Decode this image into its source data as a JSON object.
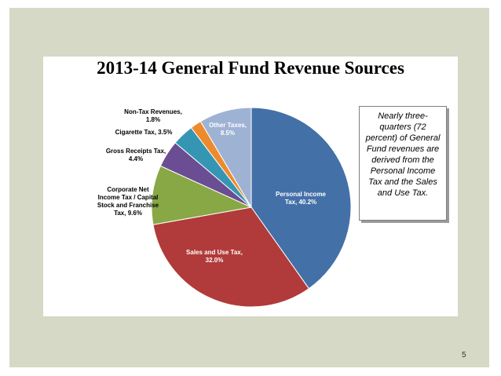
{
  "chart_data": {
    "type": "pie",
    "title": "2013-14 General Fund Revenue Sources",
    "start_angle_deg": 0,
    "direction": "clockwise",
    "slices": [
      {
        "name": "Personal Income Tax",
        "value": 40.2,
        "color": "#4470a8",
        "label_lines": [
          "Personal Income",
          "Tax, 40.2%"
        ],
        "label_pos": "inside",
        "label_color": "#ffffff"
      },
      {
        "name": "Sales and Use Tax",
        "value": 32.0,
        "color": "#b03b3a",
        "label_lines": [
          "Sales and Use Tax,",
          "32.0%"
        ],
        "label_pos": "inside",
        "label_color": "#ffffff"
      },
      {
        "name": "Corporate Net Income Tax / Capital Stock and Franchise Tax",
        "value": 9.6,
        "color": "#88a845",
        "label_lines": [
          "Corporate Net",
          "Income Tax / Capital",
          "Stock and Franchise",
          "Tax, 9.6%"
        ],
        "label_pos": "outside",
        "label_color": "#000000"
      },
      {
        "name": "Gross Receipts Tax",
        "value": 4.4,
        "color": "#6a4d92",
        "label_lines": [
          "Gross Receipts Tax,",
          "4.4%"
        ],
        "label_pos": "outside",
        "label_color": "#000000"
      },
      {
        "name": "Cigarette Tax",
        "value": 3.5,
        "color": "#3496b3",
        "label_lines": [
          "Cigarette Tax, 3.5%"
        ],
        "label_pos": "outside",
        "label_color": "#000000"
      },
      {
        "name": "Non-Tax Revenues",
        "value": 1.8,
        "color": "#ee8a2e",
        "label_lines": [
          "Non-Tax Revenues,",
          "1.8%"
        ],
        "label_pos": "outside",
        "label_color": "#000000"
      },
      {
        "name": "Other Taxes",
        "value": 8.5,
        "color": "#9eb2d4",
        "label_lines": [
          "Other Taxes,",
          "8.5%"
        ],
        "label_pos": "inside",
        "label_color": "#ffffff"
      }
    ]
  },
  "callout": {
    "text": "Nearly three-quarters (72 percent) of General Fund revenues are derived from the Personal Income Tax and the Sales and Use Tax."
  },
  "slide": {
    "page_number": "5"
  }
}
